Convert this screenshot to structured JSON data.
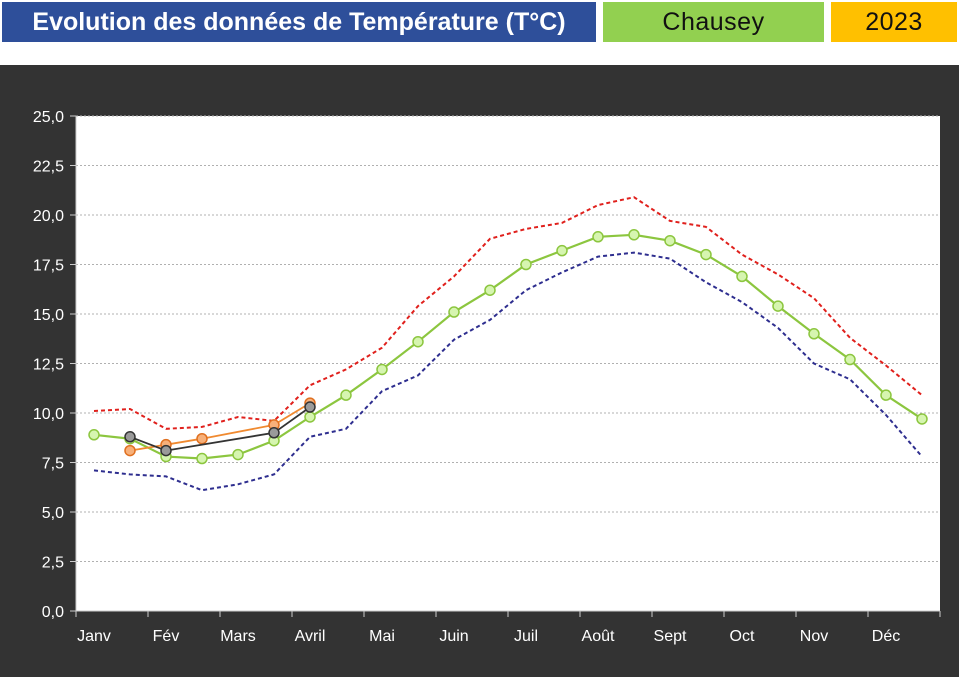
{
  "header": {
    "title": "Evolution des données de Température (T°C)",
    "station": "Chausey",
    "year": "2023"
  },
  "colors": {
    "title_bg": "#2e4f9a",
    "station_bg": "#92d050",
    "year_bg": "#ffc000",
    "panel_bg": "#333333",
    "max_series": "#e0201c",
    "min_series": "#2e2e8f",
    "mean_series": "#8cc63f",
    "year_orange": "#f08a30",
    "year_dark": "#333333"
  },
  "chart_data": {
    "type": "line",
    "title": "",
    "xlabel": "",
    "ylabel": "",
    "ylim": [
      0,
      25
    ],
    "yticks": [
      "0,0",
      "2,5",
      "5,0",
      "7,5",
      "10,0",
      "12,5",
      "15,0",
      "17,5",
      "20,0",
      "22,5",
      "25,0"
    ],
    "ytick_values": [
      0,
      2.5,
      5,
      7.5,
      10,
      12.5,
      15,
      17.5,
      20,
      22.5,
      25
    ],
    "months": [
      "Janv",
      "Fév",
      "Mars",
      "Avril",
      "Mai",
      "Juin",
      "Juil",
      "Août",
      "Sept",
      "Oct",
      "Nov",
      "Déc"
    ],
    "x_positions": [
      0.25,
      0.75,
      1.25,
      1.75,
      2.25,
      2.75,
      3.25,
      3.75,
      4.25,
      4.75,
      5.25,
      5.75,
      6.25,
      6.75,
      7.25,
      7.75,
      8.25,
      8.75,
      9.25,
      9.75,
      10.25,
      10.75,
      11.25,
      11.75
    ],
    "grid": true,
    "series": [
      {
        "key": "max",
        "style": "dashed",
        "color": "#e0201c",
        "values": [
          10.1,
          10.2,
          9.2,
          9.3,
          9.8,
          9.6,
          11.4,
          12.2,
          13.3,
          15.4,
          16.9,
          18.8,
          19.3,
          19.6,
          20.5,
          20.9,
          19.7,
          19.4,
          18.0,
          17.0,
          15.8,
          13.8,
          12.4,
          10.9
        ]
      },
      {
        "key": "min",
        "style": "dashed",
        "color": "#2e2e8f",
        "values": [
          7.1,
          6.9,
          6.8,
          6.1,
          6.4,
          6.9,
          8.8,
          9.2,
          11.1,
          11.9,
          13.7,
          14.7,
          16.2,
          17.1,
          17.9,
          18.1,
          17.8,
          16.6,
          15.6,
          14.3,
          12.5,
          11.7,
          9.9,
          7.8
        ]
      },
      {
        "key": "mean",
        "style": "solid-markers",
        "color": "#8cc63f",
        "values": [
          8.9,
          8.7,
          7.8,
          7.7,
          7.9,
          8.6,
          9.8,
          10.9,
          12.2,
          13.6,
          15.1,
          16.2,
          17.5,
          18.2,
          18.9,
          19.0,
          18.7,
          18.0,
          16.9,
          15.4,
          14.0,
          12.7,
          10.9,
          9.7
        ]
      },
      {
        "key": "year_orange",
        "style": "solid-markers",
        "color": "#f08a30",
        "x": [
          0.75,
          1.25,
          1.75,
          2.75,
          3.25
        ],
        "values": [
          8.1,
          8.4,
          8.7,
          9.4,
          10.5
        ]
      },
      {
        "key": "year_dark",
        "style": "solid-markers",
        "color": "#333333",
        "x": [
          0.75,
          1.25,
          2.75,
          3.25
        ],
        "values": [
          8.8,
          8.1,
          9.0,
          10.3
        ]
      }
    ]
  }
}
